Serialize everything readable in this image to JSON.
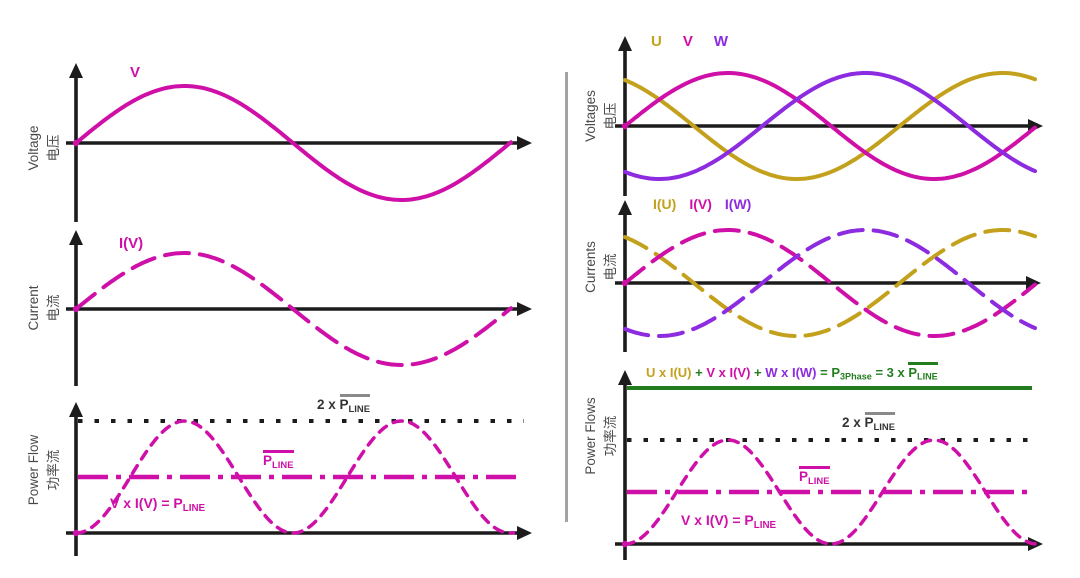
{
  "colors": {
    "magenta": "#cf10a8",
    "gold": "#c3a11c",
    "purple": "#8c2bdf",
    "green": "#237d1f",
    "axis": "#1c1c1c",
    "divider": "#a3a3a3",
    "overline": "#8a8a8a"
  },
  "left_panel": {
    "voltage": {
      "axis_label_en": "Voltage",
      "axis_label_zh": "电压",
      "wave_label": "V"
    },
    "current": {
      "axis_label_en": "Current",
      "axis_label_zh": "电流",
      "wave_label": "I(V)"
    },
    "power": {
      "axis_label_en": "Power Flow",
      "axis_label_zh": "功率流",
      "two_pline": {
        "pre": "2 x ",
        "base": "P",
        "sub": "LINE"
      },
      "pline": {
        "base": "P",
        "sub": "LINE"
      },
      "product": {
        "pre": "V x I(V) = ",
        "base": "P",
        "sub": "LINE"
      }
    }
  },
  "right_panel": {
    "voltages": {
      "axis_label_en": "Voltages",
      "axis_label_zh": "电压",
      "legend": [
        "U",
        "V",
        "W"
      ]
    },
    "currents": {
      "axis_label_en": "Currents",
      "axis_label_zh": "电流",
      "legend": [
        "I(U)",
        "I(V)",
        "I(W)"
      ]
    },
    "power": {
      "axis_label_en": "Power Flows",
      "axis_label_zh": "功率流",
      "equation": {
        "terms": [
          "U x I(U)",
          "V x I(V)",
          "W x I(W)"
        ],
        "plus": " + ",
        "eq_pre": " = P",
        "eq_sub": "3Phase",
        "eq_mid": " = 3 x ",
        "pline_base": "P",
        "pline_sub": "LINE"
      },
      "two_pline": {
        "pre": "2 x ",
        "base": "P",
        "sub": "LINE"
      },
      "pline": {
        "base": "P",
        "sub": "LINE"
      },
      "product": {
        "pre": "V x I(V) = ",
        "base": "P",
        "sub": "LINE"
      }
    }
  },
  "chart_data": [
    {
      "id": "single-phase-voltage",
      "type": "line",
      "title": "Voltage 电压",
      "x_cycles_shown": 1,
      "grid": false,
      "series": [
        {
          "name": "V",
          "waveform": "sine",
          "phase_deg": 0,
          "amplitude": 1,
          "color": "magenta",
          "style": "solid"
        }
      ]
    },
    {
      "id": "single-phase-current",
      "type": "line",
      "title": "Current 电流",
      "x_cycles_shown": 1,
      "grid": false,
      "series": [
        {
          "name": "I(V)",
          "waveform": "sine",
          "phase_deg": 0,
          "amplitude": 1,
          "color": "magenta",
          "style": "dashed"
        }
      ]
    },
    {
      "id": "single-phase-power",
      "type": "line",
      "title": "Power Flow 功率流",
      "x_cycles_shown": 1,
      "grid": false,
      "ylim": [
        0,
        2.4
      ],
      "series": [
        {
          "name": "2 x P_LINE (avg x2)",
          "waveform": "hline",
          "level": 2,
          "color": "axis",
          "style": "dotted"
        },
        {
          "name": "P_LINE (average)",
          "waveform": "hline",
          "level": 1,
          "color": "magenta",
          "style": "dashdot"
        },
        {
          "name": "V x I(V) = P_LINE",
          "waveform": "sine_squared",
          "peak": 2,
          "color": "magenta",
          "style": "dashed_short"
        }
      ]
    },
    {
      "id": "three-phase-voltages",
      "type": "line",
      "title": "Voltages 电压",
      "x_cycles_shown": 1,
      "grid": false,
      "series": [
        {
          "name": "U",
          "waveform": "sine",
          "phase_deg": 120,
          "amplitude": 1,
          "color": "gold",
          "style": "solid"
        },
        {
          "name": "V",
          "waveform": "sine",
          "phase_deg": 0,
          "amplitude": 1,
          "color": "magenta",
          "style": "solid"
        },
        {
          "name": "W",
          "waveform": "sine",
          "phase_deg": -120,
          "amplitude": 1,
          "color": "purple",
          "style": "solid"
        }
      ]
    },
    {
      "id": "three-phase-currents",
      "type": "line",
      "title": "Currents 电流",
      "x_cycles_shown": 1,
      "grid": false,
      "series": [
        {
          "name": "I(U)",
          "waveform": "sine",
          "phase_deg": 120,
          "amplitude": 1,
          "color": "gold",
          "style": "dashed"
        },
        {
          "name": "I(V)",
          "waveform": "sine",
          "phase_deg": 0,
          "amplitude": 1,
          "color": "magenta",
          "style": "dashed"
        },
        {
          "name": "I(W)",
          "waveform": "sine",
          "phase_deg": -120,
          "amplitude": 1,
          "color": "purple",
          "style": "dashed"
        }
      ]
    },
    {
      "id": "three-phase-power",
      "type": "line",
      "title": "Power Flows 功率流",
      "x_cycles_shown": 1,
      "grid": false,
      "ylim": [
        0,
        3.4
      ],
      "series": [
        {
          "name": "U x I(U) + V x I(V) + W x I(W) = P_3Phase = 3 x P_LINE",
          "waveform": "hline",
          "level": 3,
          "color": "green",
          "style": "solid"
        },
        {
          "name": "2 x P_LINE (avg x2)",
          "waveform": "hline",
          "level": 2,
          "color": "axis",
          "style": "dotted"
        },
        {
          "name": "P_LINE (average)",
          "waveform": "hline",
          "level": 1,
          "color": "magenta",
          "style": "dashdot"
        },
        {
          "name": "V x I(V) = P_LINE",
          "waveform": "sine_squared",
          "peak": 2,
          "color": "magenta",
          "style": "dashed_short"
        }
      ]
    }
  ]
}
